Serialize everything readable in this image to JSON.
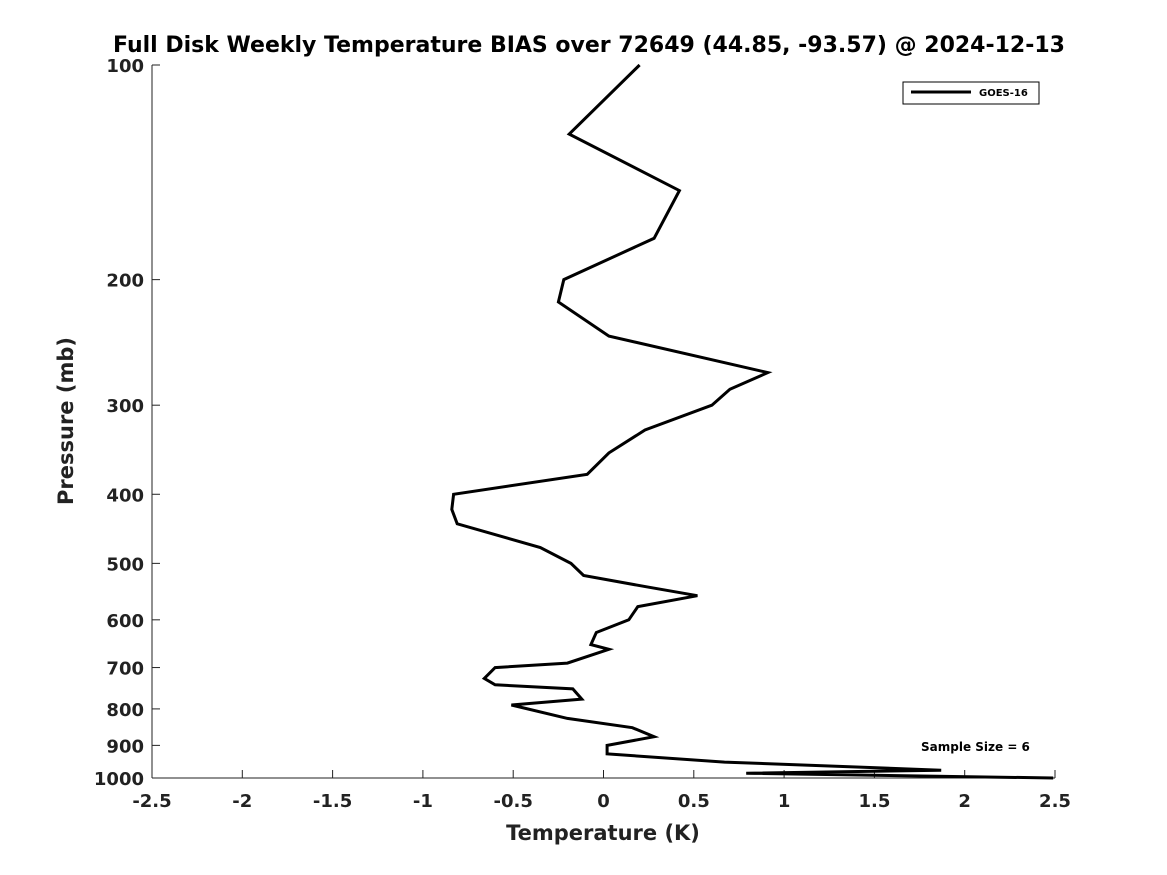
{
  "chart_data": {
    "type": "line",
    "title": "Full Disk Weekly Temperature BIAS over 72649 (44.85, -93.57) @ 2024-12-13",
    "xlabel": "Temperature (K)",
    "ylabel": "Pressure (mb)",
    "xlim": [
      -2.5,
      2.5
    ],
    "ylim": [
      100,
      1000
    ],
    "y_scale": "log",
    "y_reversed": true,
    "x_ticks": [
      "-2.5",
      "-2",
      "-1.5",
      "-1",
      "-0.5",
      "0",
      "0.5",
      "1",
      "1.5",
      "2",
      "2.5"
    ],
    "y_ticks": [
      "100",
      "200",
      "300",
      "400",
      "500",
      "600",
      "700",
      "800",
      "900",
      "1000"
    ],
    "grid": false,
    "legend_position": "top-right",
    "annotation": "Sample Size = 6",
    "series": [
      {
        "name": "GOES-16",
        "color": "#000000",
        "points": [
          {
            "x": 0.2,
            "p": 100
          },
          {
            "x": -0.19,
            "p": 125
          },
          {
            "x": 0.42,
            "p": 150
          },
          {
            "x": 0.28,
            "p": 175
          },
          {
            "x": -0.22,
            "p": 200
          },
          {
            "x": -0.25,
            "p": 215
          },
          {
            "x": 0.03,
            "p": 240
          },
          {
            "x": 0.91,
            "p": 270
          },
          {
            "x": 0.7,
            "p": 285
          },
          {
            "x": 0.6,
            "p": 300
          },
          {
            "x": 0.23,
            "p": 325
          },
          {
            "x": 0.03,
            "p": 350
          },
          {
            "x": -0.09,
            "p": 375
          },
          {
            "x": -0.83,
            "p": 400
          },
          {
            "x": -0.84,
            "p": 420
          },
          {
            "x": -0.81,
            "p": 440
          },
          {
            "x": -0.35,
            "p": 475
          },
          {
            "x": -0.18,
            "p": 500
          },
          {
            "x": -0.11,
            "p": 520
          },
          {
            "x": 0.25,
            "p": 540
          },
          {
            "x": 0.52,
            "p": 555
          },
          {
            "x": 0.19,
            "p": 575
          },
          {
            "x": 0.14,
            "p": 600
          },
          {
            "x": -0.04,
            "p": 625
          },
          {
            "x": -0.07,
            "p": 650
          },
          {
            "x": 0.03,
            "p": 660
          },
          {
            "x": -0.2,
            "p": 690
          },
          {
            "x": -0.6,
            "p": 700
          },
          {
            "x": -0.66,
            "p": 725
          },
          {
            "x": -0.6,
            "p": 740
          },
          {
            "x": -0.17,
            "p": 750
          },
          {
            "x": -0.12,
            "p": 775
          },
          {
            "x": -0.51,
            "p": 790
          },
          {
            "x": -0.2,
            "p": 825
          },
          {
            "x": 0.16,
            "p": 850
          },
          {
            "x": 0.28,
            "p": 875
          },
          {
            "x": 0.02,
            "p": 900
          },
          {
            "x": 0.02,
            "p": 925
          },
          {
            "x": 0.67,
            "p": 950
          },
          {
            "x": 1.87,
            "p": 975
          },
          {
            "x": 0.79,
            "p": 985
          },
          {
            "x": 2.49,
            "p": 1000
          }
        ]
      }
    ]
  }
}
